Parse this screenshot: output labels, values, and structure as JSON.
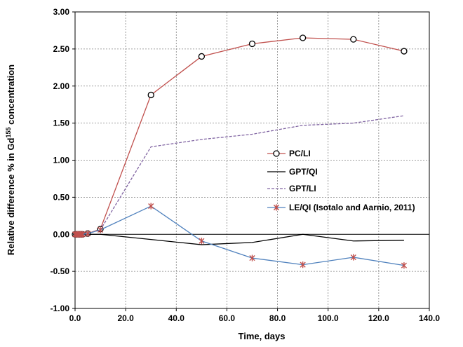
{
  "chart_data": {
    "type": "line",
    "xlabel": "Time, days",
    "ylabel_main": "Relative difference % in Gd",
    "ylabel_sup": "155",
    "ylabel_tail": " concentration",
    "xlim": [
      0,
      140
    ],
    "ylim": [
      -1,
      3
    ],
    "x_ticks": [
      "0.0",
      "20.0",
      "40.0",
      "60.0",
      "80.0",
      "100.0",
      "120.0",
      "140.0"
    ],
    "y_ticks": [
      "-1.00",
      "-0.50",
      "0.00",
      "0.50",
      "1.00",
      "1.50",
      "2.00",
      "2.50",
      "3.00"
    ],
    "grid": true,
    "legend_position": "center-right",
    "series": [
      {
        "name": "PC/LI",
        "color": "#c0504d",
        "marker": "circle",
        "dash": false,
        "x": [
          0,
          0.5,
          1,
          1.5,
          2,
          2.5,
          3,
          5,
          10,
          30,
          50,
          70,
          90,
          110,
          130
        ],
        "y": [
          0.0,
          0.0,
          0.0,
          0.0,
          0.0,
          0.0,
          0.0,
          0.01,
          0.07,
          1.88,
          2.4,
          2.57,
          2.65,
          2.63,
          2.47
        ]
      },
      {
        "name": "GPT/QI",
        "color": "#000000",
        "marker": "none",
        "dash": false,
        "x": [
          0,
          1,
          2,
          3,
          5,
          10,
          30,
          50,
          70,
          90,
          110,
          130
        ],
        "y": [
          0.0,
          0.0,
          0.0,
          0.0,
          0.0,
          0.0,
          -0.07,
          -0.14,
          -0.11,
          0.0,
          -0.09,
          -0.08
        ]
      },
      {
        "name": "GPT/LI",
        "color": "#8064a2",
        "marker": "none",
        "dash": true,
        "x": [
          0,
          1,
          2,
          3,
          5,
          10,
          30,
          50,
          70,
          90,
          110,
          130
        ],
        "y": [
          0.0,
          0.0,
          0.0,
          0.0,
          0.01,
          0.06,
          1.18,
          1.28,
          1.35,
          1.47,
          1.5,
          1.6
        ]
      },
      {
        "name": "LE/QI (Isotalo and Aarnio, 2011)",
        "color": "#4f81bd",
        "marker": "star",
        "marker_color": "#c0504d",
        "dash": false,
        "x": [
          0,
          0.5,
          1,
          1.5,
          2,
          2.5,
          3,
          5,
          10,
          30,
          50,
          70,
          90,
          110,
          130
        ],
        "y": [
          0.0,
          0.0,
          0.0,
          0.0,
          0.0,
          0.0,
          0.0,
          0.01,
          0.06,
          0.38,
          -0.09,
          -0.32,
          -0.41,
          -0.31,
          -0.42
        ]
      }
    ]
  }
}
